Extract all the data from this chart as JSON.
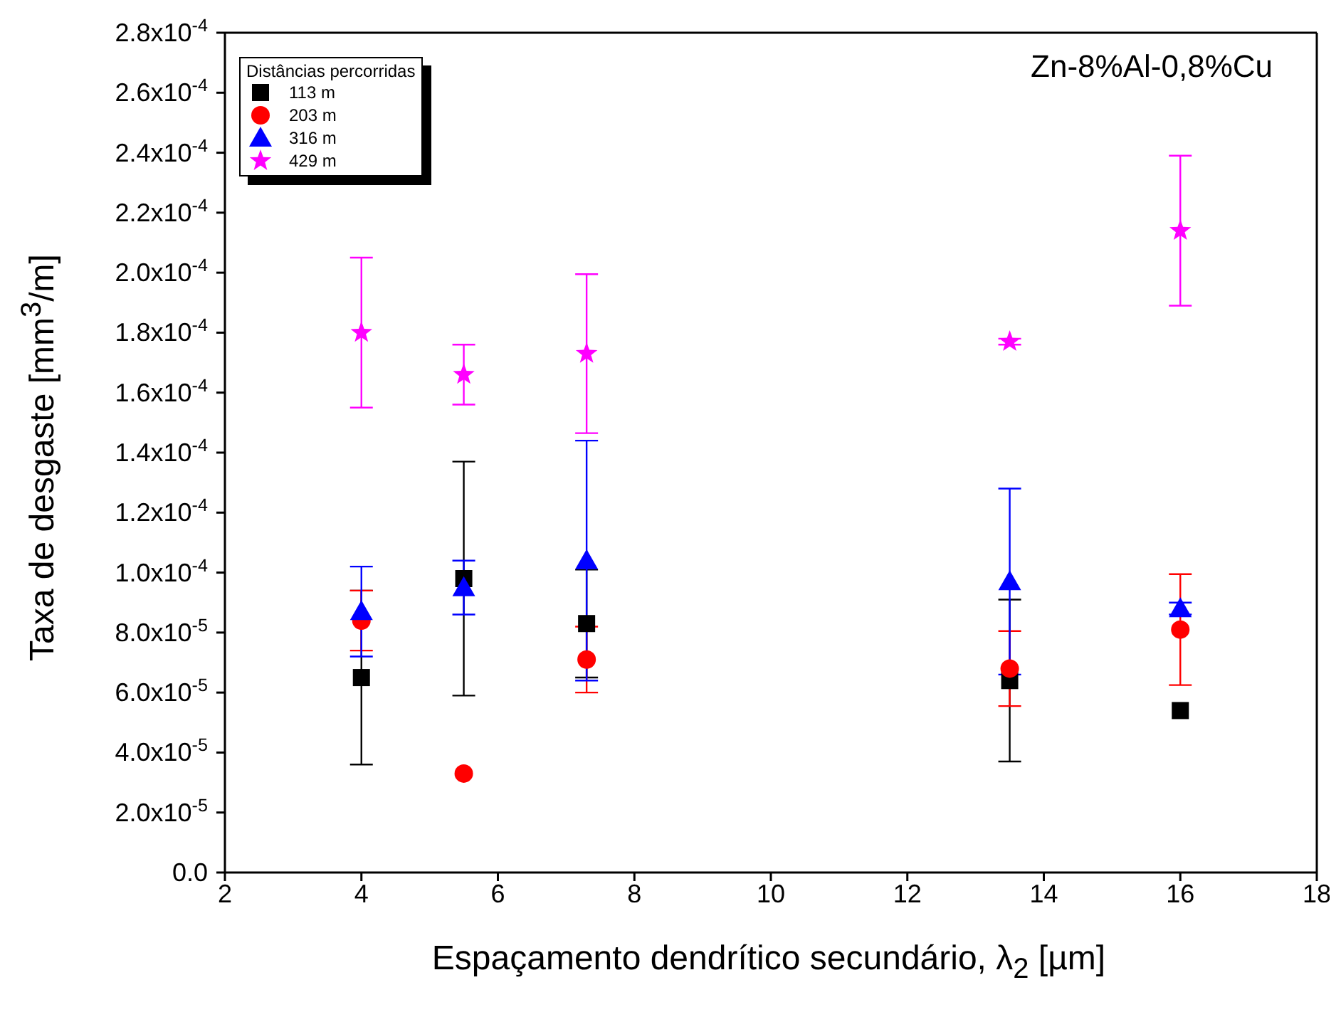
{
  "chart_data": {
    "type": "scatter",
    "xlabel": "Espaçamento dendrítico secundário, λ$_{2}$ [µm]",
    "ylabel": "Taxa de desgaste [mm$^{3}$/m]",
    "legend_title": "Distâncias percorridas",
    "legend": "top left",
    "grid": false,
    "annotations": [
      "Zn-8%Al-0,8%Cu"
    ],
    "x": [
      4,
      5.5,
      7.3,
      13.5,
      16
    ],
    "xlim": [
      2,
      18
    ],
    "xticks": [
      2,
      4,
      6,
      8,
      10,
      12,
      14,
      16,
      18
    ],
    "ylim": [
      0,
      0.00028
    ],
    "yticks": [
      {
        "value": 0,
        "label": "0.0"
      },
      {
        "value": 2e-05,
        "label": "2.0x10$^{-5}$"
      },
      {
        "value": 4e-05,
        "label": "4.0x10$^{-5}$"
      },
      {
        "value": 6e-05,
        "label": "6.0x10$^{-5}$"
      },
      {
        "value": 8e-05,
        "label": "8.0x10$^{-5}$"
      },
      {
        "value": 0.0001,
        "label": "1.0x10$^{-4}$"
      },
      {
        "value": 0.00012,
        "label": "1.2x10$^{-4}$"
      },
      {
        "value": 0.00014,
        "label": "1.4x10$^{-4}$"
      },
      {
        "value": 0.00016,
        "label": "1.6x10$^{-4}$"
      },
      {
        "value": 0.00018,
        "label": "1.8x10$^{-4}$"
      },
      {
        "value": 0.0002,
        "label": "2.0x10$^{-4}$"
      },
      {
        "value": 0.00022,
        "label": "2.2x10$^{-4}$"
      },
      {
        "value": 0.00024,
        "label": "2.4x10$^{-4}$"
      },
      {
        "value": 0.00026,
        "label": "2.6x10$^{-4}$"
      },
      {
        "value": 0.00028,
        "label": "2.8x10$^{-4}$"
      }
    ],
    "series": [
      {
        "name": "113 m",
        "color": "#000000",
        "marker": "square",
        "values": [
          6.5e-05,
          9.8e-05,
          8.3e-05,
          6.4e-05,
          5.4e-05
        ],
        "errors": [
          2.9e-05,
          3.9e-05,
          1.8e-05,
          2.7e-05,
          null
        ]
      },
      {
        "name": "203 m",
        "color": "#ff0000",
        "marker": "circle",
        "values": [
          8.4e-05,
          3.3e-05,
          7.1e-05,
          6.8e-05,
          8.1e-05
        ],
        "errors": [
          1e-05,
          null,
          1.1e-05,
          1.25e-05,
          1.85e-05
        ]
      },
      {
        "name": "316 m",
        "color": "#0000ff",
        "marker": "triangle",
        "values": [
          8.7e-05,
          9.5e-05,
          0.000104,
          9.7e-05,
          8.8e-05
        ],
        "errors": [
          1.5e-05,
          9e-06,
          4e-05,
          3.1e-05,
          2e-06
        ]
      },
      {
        "name": "429 m",
        "color": "#ff00ff",
        "marker": "star",
        "values": [
          0.00018,
          0.000166,
          0.000173,
          0.000177,
          0.000214
        ],
        "errors": [
          2.5e-05,
          1e-05,
          2.65e-05,
          1e-06,
          2.5e-05
        ]
      }
    ]
  }
}
